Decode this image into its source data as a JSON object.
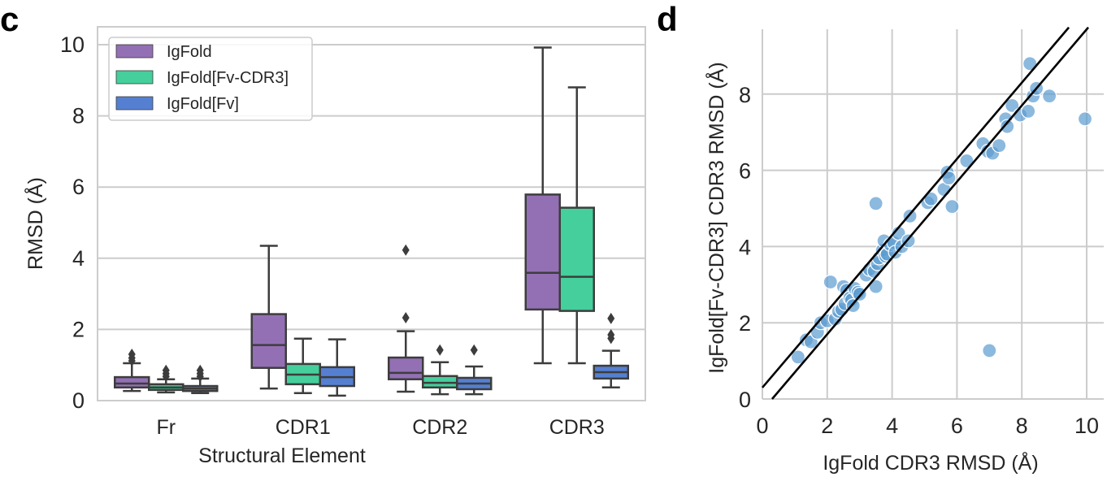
{
  "chart_data": [
    {
      "panel_label": "c",
      "type": "box",
      "xlabel": "Structural Element",
      "ylabel": "RMSD (Å)",
      "ylim": [
        0,
        10.3
      ],
      "yticks": [
        "0",
        "2",
        "4",
        "6",
        "8",
        "10"
      ],
      "categories": [
        "Fr",
        "CDR1",
        "CDR2",
        "CDR3"
      ],
      "grid": true,
      "legend_position": "top-left",
      "series": [
        {
          "name": "IgFold",
          "color": "#9370b4",
          "boxes": [
            {
              "whislo": 0.27,
              "q1": 0.37,
              "med": 0.48,
              "q3": 0.66,
              "whishi": 1.05,
              "fliers": [
                1.12,
                1.2,
                1.3
              ]
            },
            {
              "whislo": 0.34,
              "q1": 0.92,
              "med": 1.56,
              "q3": 2.43,
              "whishi": 4.35,
              "fliers": []
            },
            {
              "whislo": 0.25,
              "q1": 0.6,
              "med": 0.78,
              "q3": 1.21,
              "whishi": 1.95,
              "fliers": [
                2.33,
                4.23
              ]
            },
            {
              "whislo": 1.05,
              "q1": 2.56,
              "med": 3.59,
              "q3": 5.79,
              "whishi": 9.92,
              "fliers": []
            }
          ]
        },
        {
          "name": "IgFold[Fv-CDR3]",
          "color": "#45cf9c",
          "boxes": [
            {
              "whislo": 0.23,
              "q1": 0.3,
              "med": 0.37,
              "q3": 0.46,
              "whishi": 0.6,
              "fliers": [
                0.68,
                0.76,
                0.85
              ]
            },
            {
              "whislo": 0.21,
              "q1": 0.46,
              "med": 0.73,
              "q3": 1.03,
              "whishi": 1.74,
              "fliers": []
            },
            {
              "whislo": 0.18,
              "q1": 0.37,
              "med": 0.5,
              "q3": 0.69,
              "whishi": 1.08,
              "fliers": [
                1.42
              ]
            },
            {
              "whislo": 1.05,
              "q1": 2.52,
              "med": 3.48,
              "q3": 5.42,
              "whishi": 8.8,
              "fliers": []
            }
          ]
        },
        {
          "name": "IgFold[Fv]",
          "color": "#5580d2",
          "boxes": [
            {
              "whislo": 0.21,
              "q1": 0.27,
              "med": 0.34,
              "q3": 0.41,
              "whishi": 0.62,
              "fliers": [
                0.68,
                0.76,
                0.85
              ]
            },
            {
              "whislo": 0.14,
              "q1": 0.41,
              "med": 0.66,
              "q3": 0.94,
              "whishi": 1.72,
              "fliers": []
            },
            {
              "whislo": 0.18,
              "q1": 0.32,
              "med": 0.48,
              "q3": 0.64,
              "whishi": 0.96,
              "fliers": [
                1.42
              ]
            },
            {
              "whislo": 0.37,
              "q1": 0.62,
              "med": 0.8,
              "q3": 0.98,
              "whishi": 1.4,
              "fliers": [
                1.75,
                1.85,
                2.31
              ]
            }
          ]
        }
      ]
    },
    {
      "panel_label": "d",
      "type": "scatter",
      "xlabel": "IgFold CDR3 RMSD (Å)",
      "ylabel": "IgFold[Fv-CDR3] CDR3 RMSD (Å)",
      "xlim": [
        0,
        10.5
      ],
      "ylim": [
        0,
        9.6
      ],
      "xticks": [
        "0",
        "2",
        "4",
        "6",
        "8",
        "10"
      ],
      "yticks": [
        "0",
        "2",
        "4",
        "6",
        "8"
      ],
      "grid": true,
      "point_color": "#5b9bd0",
      "reference_lines": [
        {
          "slope": 1,
          "intercept": 0.3
        },
        {
          "slope": 1,
          "intercept": -0.3
        }
      ],
      "points": [
        [
          1.1,
          1.1
        ],
        [
          1.35,
          1.55
        ],
        [
          1.5,
          1.5
        ],
        [
          1.7,
          1.75
        ],
        [
          1.8,
          2.0
        ],
        [
          2.0,
          2.05
        ],
        [
          2.1,
          3.07
        ],
        [
          2.25,
          2.1
        ],
        [
          2.35,
          2.3
        ],
        [
          2.45,
          2.35
        ],
        [
          2.5,
          2.95
        ],
        [
          2.55,
          2.5
        ],
        [
          2.6,
          2.85
        ],
        [
          2.7,
          2.65
        ],
        [
          2.75,
          2.6
        ],
        [
          2.8,
          2.45
        ],
        [
          2.85,
          2.9
        ],
        [
          2.95,
          2.8
        ],
        [
          3.0,
          2.75
        ],
        [
          3.2,
          3.25
        ],
        [
          3.3,
          3.4
        ],
        [
          3.45,
          3.35
        ],
        [
          3.5,
          5.13
        ],
        [
          3.5,
          2.95
        ],
        [
          3.55,
          3.55
        ],
        [
          3.6,
          3.7
        ],
        [
          3.7,
          3.9
        ],
        [
          3.75,
          4.15
        ],
        [
          3.8,
          3.75
        ],
        [
          3.85,
          3.8
        ],
        [
          3.95,
          4.05
        ],
        [
          4.05,
          4.1
        ],
        [
          4.1,
          3.85
        ],
        [
          4.2,
          4.35
        ],
        [
          4.3,
          4.0
        ],
        [
          4.5,
          4.15
        ],
        [
          4.55,
          4.8
        ],
        [
          5.1,
          5.15
        ],
        [
          5.2,
          5.25
        ],
        [
          5.6,
          5.5
        ],
        [
          5.7,
          5.95
        ],
        [
          5.75,
          5.8
        ],
        [
          5.85,
          5.05
        ],
        [
          6.3,
          6.25
        ],
        [
          6.8,
          6.7
        ],
        [
          6.95,
          6.5
        ],
        [
          7.1,
          6.45
        ],
        [
          7.3,
          6.65
        ],
        [
          7.0,
          1.27
        ],
        [
          7.5,
          7.35
        ],
        [
          7.55,
          7.15
        ],
        [
          7.7,
          7.7
        ],
        [
          7.95,
          7.45
        ],
        [
          8.2,
          7.55
        ],
        [
          8.25,
          8.8
        ],
        [
          8.35,
          7.95
        ],
        [
          8.45,
          8.15
        ],
        [
          8.85,
          7.95
        ],
        [
          9.95,
          7.35
        ]
      ]
    }
  ]
}
